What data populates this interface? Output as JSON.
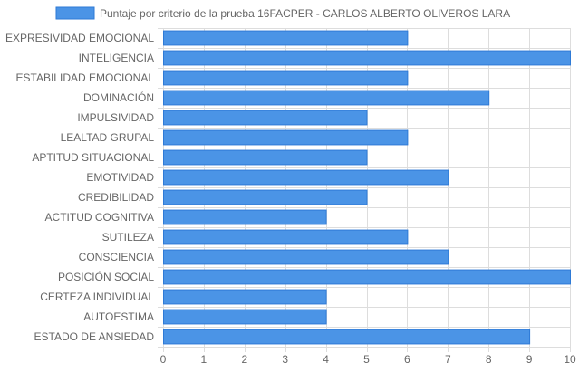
{
  "chart_data": {
    "type": "bar",
    "orientation": "horizontal",
    "legend_position": "top",
    "grid": true,
    "colors": {
      "bar_fill": "#4b94e6",
      "bar_stroke": "#2e7ad6",
      "grid": "#dddddd",
      "text": "#666666"
    },
    "series": [
      {
        "name": "Puntaje por criterio de la prueba 16FACPER - CARLOS ALBERTO OLIVEROS LARA",
        "values": [
          6,
          10,
          6,
          8,
          5,
          6,
          5,
          7,
          5,
          4,
          6,
          7,
          10,
          4,
          4,
          9
        ]
      }
    ],
    "categories": [
      "EXPRESIVIDAD EMOCIONAL",
      "INTELIGENCIA",
      "ESTABILIDAD EMOCIONAL",
      "DOMINACIÓN",
      "IMPULSIVIDAD",
      "LEALTAD GRUPAL",
      "APTITUD SITUACIONAL",
      "EMOTIVIDAD",
      "CREDIBILIDAD",
      "ACTITUD COGNITIVA",
      "SUTILEZA",
      "CONSCIENCIA",
      "POSICIÓN SOCIAL",
      "CERTEZA INDIVIDUAL",
      "AUTOESTIMA",
      "ESTADO DE ANSIEDAD"
    ],
    "xlim": [
      0,
      10
    ],
    "xticks": [
      "0",
      "1",
      "2",
      "3",
      "4",
      "5",
      "6",
      "7",
      "8",
      "9",
      "10"
    ]
  }
}
